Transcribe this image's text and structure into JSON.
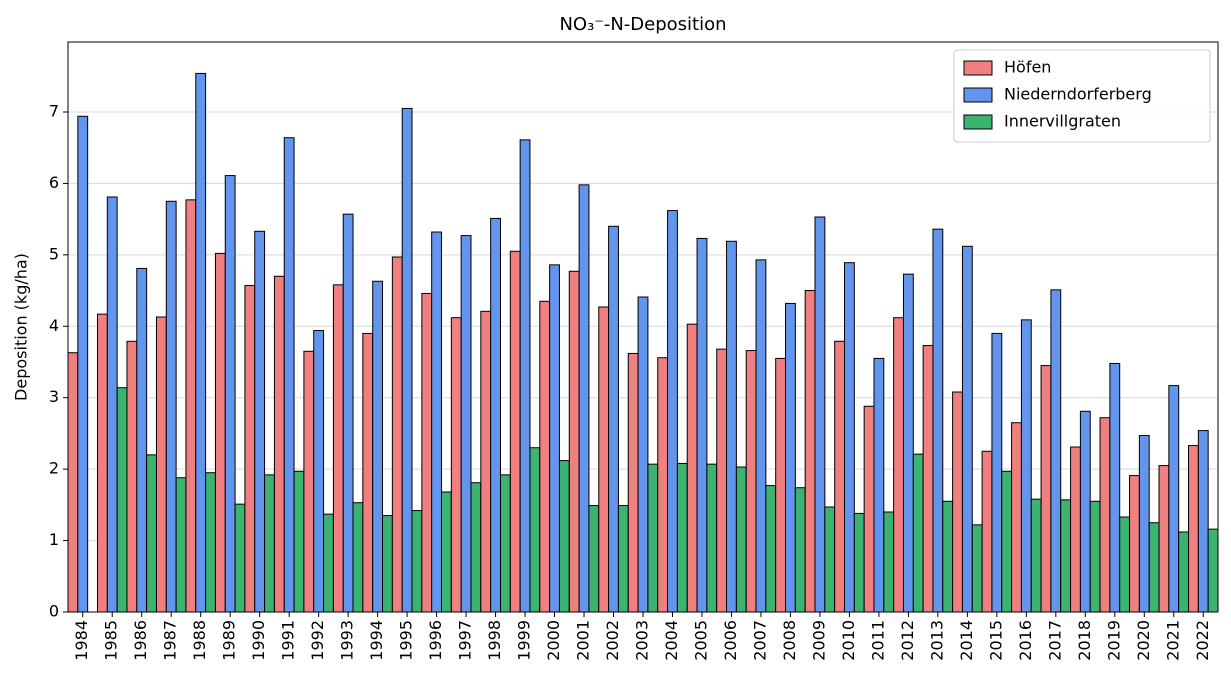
{
  "chart_data": {
    "type": "bar",
    "title": "NO₃⁻-N-Deposition",
    "y_label": "Deposition (kg/ha)",
    "categories": [
      "1984",
      "1985",
      "1986",
      "1987",
      "1988",
      "1989",
      "1990",
      "1991",
      "1992",
      "1993",
      "1994",
      "1995",
      "1996",
      "1997",
      "1998",
      "1999",
      "2000",
      "2001",
      "2002",
      "2003",
      "2004",
      "2005",
      "2006",
      "2007",
      "2008",
      "2009",
      "2010",
      "2011",
      "2012",
      "2013",
      "2014",
      "2015",
      "2016",
      "2017",
      "2018",
      "2019",
      "2020",
      "2021",
      "2022"
    ],
    "series": [
      {
        "name": "Höfen",
        "color": "#f08080",
        "values": [
          3.63,
          4.17,
          3.79,
          4.13,
          5.77,
          5.02,
          4.57,
          4.7,
          3.65,
          4.58,
          3.9,
          4.97,
          4.46,
          4.12,
          4.21,
          5.05,
          4.35,
          4.77,
          4.27,
          3.62,
          3.56,
          4.03,
          3.68,
          3.66,
          3.55,
          4.5,
          3.79,
          2.88,
          4.12,
          3.73,
          3.08,
          2.25,
          2.65,
          3.45,
          2.31,
          2.72,
          1.91,
          2.05,
          2.33
        ]
      },
      {
        "name": "Niederndorferberg",
        "color": "#6495ed",
        "values": [
          6.94,
          5.81,
          4.81,
          5.75,
          7.54,
          6.11,
          5.33,
          6.64,
          3.94,
          5.57,
          4.63,
          7.05,
          5.32,
          5.27,
          5.51,
          6.61,
          4.86,
          5.98,
          5.4,
          4.41,
          5.62,
          5.23,
          5.19,
          4.93,
          4.32,
          5.53,
          4.89,
          3.55,
          4.73,
          5.36,
          5.12,
          3.9,
          4.09,
          4.51,
          2.81,
          3.48,
          2.47,
          3.17,
          2.54
        ]
      },
      {
        "name": "Innervillgraten",
        "color": "#3cb371",
        "values": [
          null,
          3.14,
          2.2,
          1.88,
          1.95,
          1.51,
          1.92,
          1.97,
          1.37,
          1.53,
          1.35,
          1.42,
          1.68,
          1.81,
          1.92,
          2.3,
          2.12,
          1.49,
          1.49,
          2.07,
          2.08,
          2.07,
          2.03,
          1.77,
          1.74,
          1.47,
          1.38,
          1.4,
          2.21,
          1.55,
          1.22,
          1.97,
          1.58,
          1.57,
          1.55,
          1.33,
          1.25,
          1.12,
          1.16
        ]
      }
    ],
    "ylim": [
      0,
      7.98
    ],
    "yticks": [
      0,
      1,
      2,
      3,
      4,
      5,
      6,
      7
    ],
    "grid": true,
    "legend": "upper right"
  }
}
